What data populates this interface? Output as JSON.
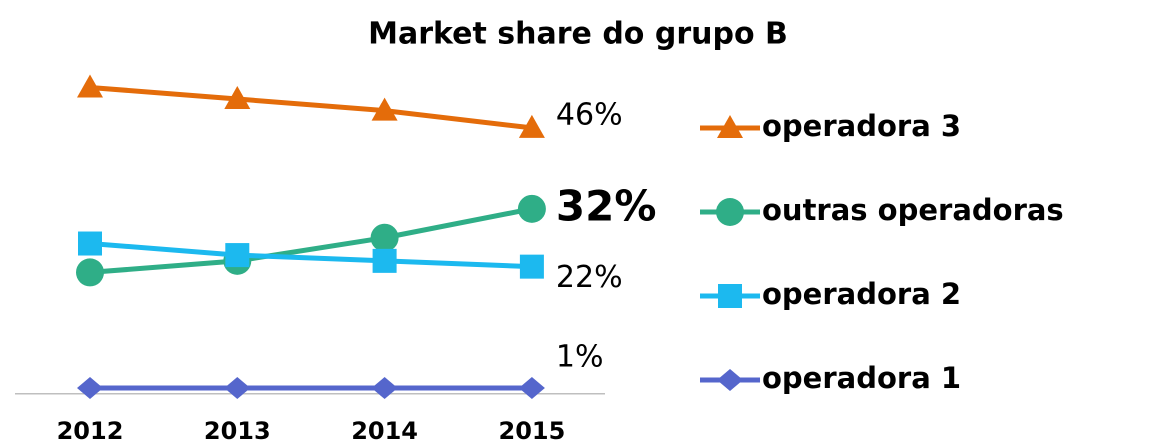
{
  "chart_data": {
    "type": "line",
    "title": "Market share do grupo B",
    "categories": [
      "2012",
      "2013",
      "2014",
      "2015"
    ],
    "ylim": [
      0,
      60
    ],
    "series": [
      {
        "name": "operadora 3",
        "color": "#e46c0a",
        "marker": "triangle",
        "values": [
          53,
          51,
          49,
          46
        ],
        "value_labels": [
          null,
          null,
          null,
          "46%"
        ]
      },
      {
        "name": "outras operadoras",
        "color": "#2fae87",
        "marker": "circle",
        "values": [
          21,
          23,
          27,
          32
        ],
        "value_labels": [
          null,
          null,
          null,
          "32%"
        ],
        "bold_label": true
      },
      {
        "name": "operadora 2",
        "color": "#1cb9ef",
        "marker": "square",
        "values": [
          26,
          24,
          23,
          22
        ],
        "value_labels": [
          null,
          null,
          null,
          "22%"
        ]
      },
      {
        "name": "operadora 1",
        "color": "#5566cc",
        "marker": "diamond",
        "values": [
          1,
          1,
          1,
          1
        ],
        "value_labels": [
          null,
          null,
          null,
          "1%"
        ]
      }
    ]
  }
}
